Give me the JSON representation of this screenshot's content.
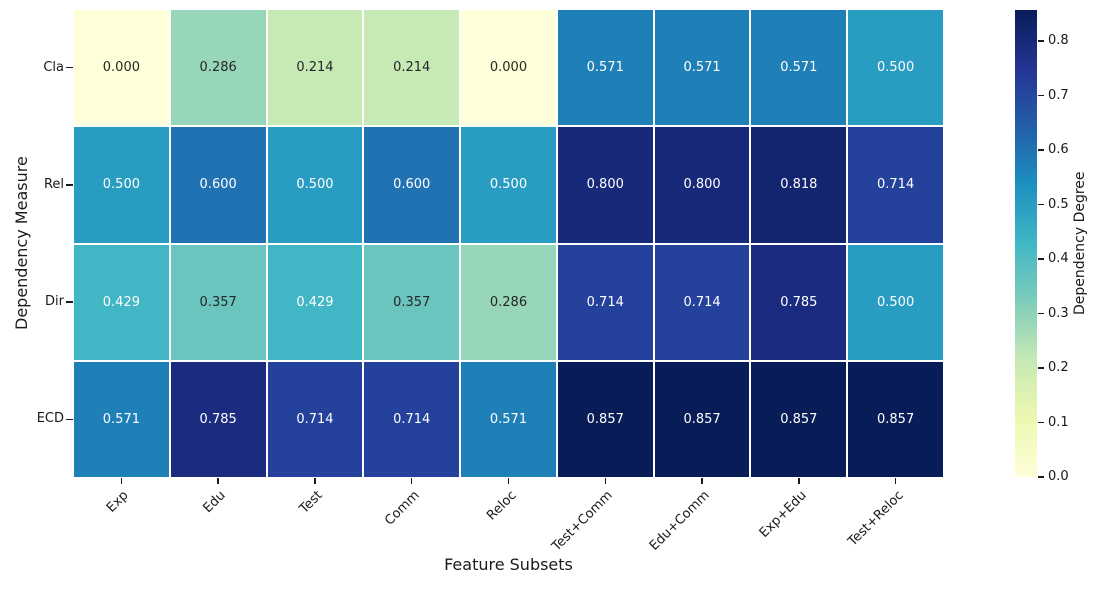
{
  "chart_data": {
    "type": "heatmap",
    "xlabel": "Feature Subsets",
    "ylabel": "Dependency Measure",
    "colorbar_label": "Dependency Degree",
    "rows": [
      "Cla",
      "Rel",
      "Dir",
      "ECD"
    ],
    "columns": [
      "Exp",
      "Edu",
      "Test",
      "Comm",
      "Reloc",
      "Test+Comm",
      "Edu+Comm",
      "Exp+Edu",
      "Test+Reloc"
    ],
    "values": [
      [
        0.0,
        0.286,
        0.214,
        0.214,
        0.0,
        0.571,
        0.571,
        0.571,
        0.5
      ],
      [
        0.5,
        0.6,
        0.5,
        0.6,
        0.5,
        0.8,
        0.8,
        0.818,
        0.714
      ],
      [
        0.429,
        0.357,
        0.429,
        0.357,
        0.286,
        0.714,
        0.714,
        0.785,
        0.5
      ],
      [
        0.571,
        0.785,
        0.714,
        0.714,
        0.571,
        0.857,
        0.857,
        0.857,
        0.857
      ]
    ],
    "value_decimals": 3,
    "vmin": 0.0,
    "vmax": 0.857,
    "grid": false,
    "colorbar_ticks": [
      0.0,
      0.1,
      0.2,
      0.3,
      0.4,
      0.5,
      0.6,
      0.7,
      0.8
    ],
    "colorbar_tick_decimals": 1,
    "colormap_name": "YlGnBu",
    "colormap_stops": [
      "#ffffd9",
      "#edf8b1",
      "#c7e9b4",
      "#7fcdbb",
      "#41b6c4",
      "#1d91c0",
      "#225ea8",
      "#253494",
      "#081d58"
    ],
    "colors": {
      "annot_light": "#ffffff",
      "annot_dark": "#262626",
      "axis_text": "#1a1a1a",
      "background": "#ffffff",
      "cell_gap": "#ffffff"
    }
  }
}
